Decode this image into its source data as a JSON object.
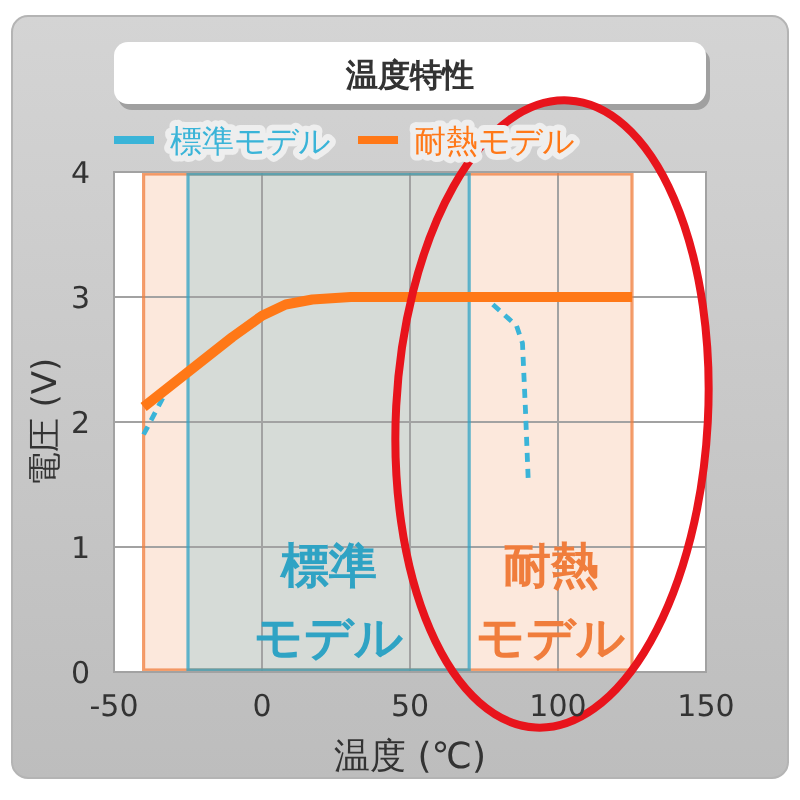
{
  "chart_data": {
    "type": "line",
    "title": "温度特性",
    "xlabel": "温度 (℃)",
    "ylabel": "電圧 (V)",
    "xlim": [
      -50,
      150
    ],
    "ylim": [
      0,
      4
    ],
    "xticks": [
      -50,
      0,
      50,
      100,
      150
    ],
    "yticks": [
      0,
      1,
      2,
      3,
      4
    ],
    "grid": true,
    "legend": "top left",
    "series": [
      {
        "name": "標準モデル",
        "color": "#3ab4d8",
        "line_style": "dashed",
        "x": [
          -40,
          -32,
          null,
          78,
          86,
          88,
          89,
          90
        ],
        "values": [
          1.9,
          2.26,
          null,
          2.94,
          2.77,
          2.63,
          2.1,
          1.5
        ]
      },
      {
        "name": "耐熱モデル",
        "color": "#ff7817",
        "line_style": "solid",
        "x": [
          -40,
          -25,
          -10,
          0,
          8,
          17,
          30,
          125
        ],
        "values": [
          2.12,
          2.4,
          2.68,
          2.85,
          2.94,
          2.98,
          3.0,
          3.0
        ]
      }
    ],
    "bands": [
      {
        "axis": "x",
        "from": -40,
        "to": 125,
        "label": "耐熱モデル",
        "color": "#f07d3c"
      },
      {
        "axis": "x",
        "from": -25,
        "to": 70,
        "label": "標準モデル",
        "color": "#2fa3c4"
      }
    ]
  }
}
